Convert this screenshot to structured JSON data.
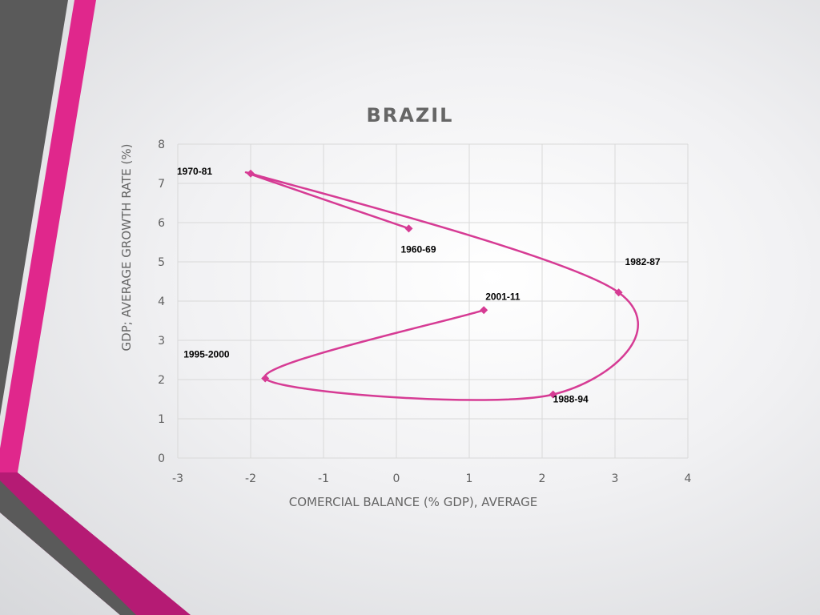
{
  "colors": {
    "series": "#d63b94",
    "grid": "#d9d9d9",
    "title": "#666666",
    "tick": "#5f5f5f",
    "axis_title": "#666666",
    "decor_gray": "#5a5a5a",
    "decor_pink": "#e0278c",
    "decor_magenta": "#b51b74"
  },
  "chart_data": {
    "type": "scatter",
    "title": "BRAZIL",
    "xlabel": "COMERCIAL BALANCE (% GDP), AVERAGE",
    "ylabel": "GDP; AVERAGE GROWTH RATE (%)",
    "xlim": [
      -3,
      4
    ],
    "ylim": [
      0,
      8
    ],
    "x_ticks": [
      "-3",
      "-2",
      "-1",
      "0",
      "1",
      "2",
      "3",
      "4"
    ],
    "y_ticks": [
      "0",
      "1",
      "2",
      "3",
      "4",
      "5",
      "6",
      "7",
      "8"
    ],
    "grid": true,
    "smooth_line": true,
    "marker": "diamond",
    "points": [
      {
        "label": "1960-69",
        "x": 0.17,
        "y": 5.85
      },
      {
        "label": "1970-81",
        "x": -2.0,
        "y": 7.25
      },
      {
        "label": "1982-87",
        "x": 3.05,
        "y": 4.22
      },
      {
        "label": "1988-94",
        "x": 2.15,
        "y": 1.62
      },
      {
        "label": "1995-2000",
        "x": -1.8,
        "y": 2.03
      },
      {
        "label": "2001-11",
        "x": 1.2,
        "y": 3.77
      }
    ]
  }
}
